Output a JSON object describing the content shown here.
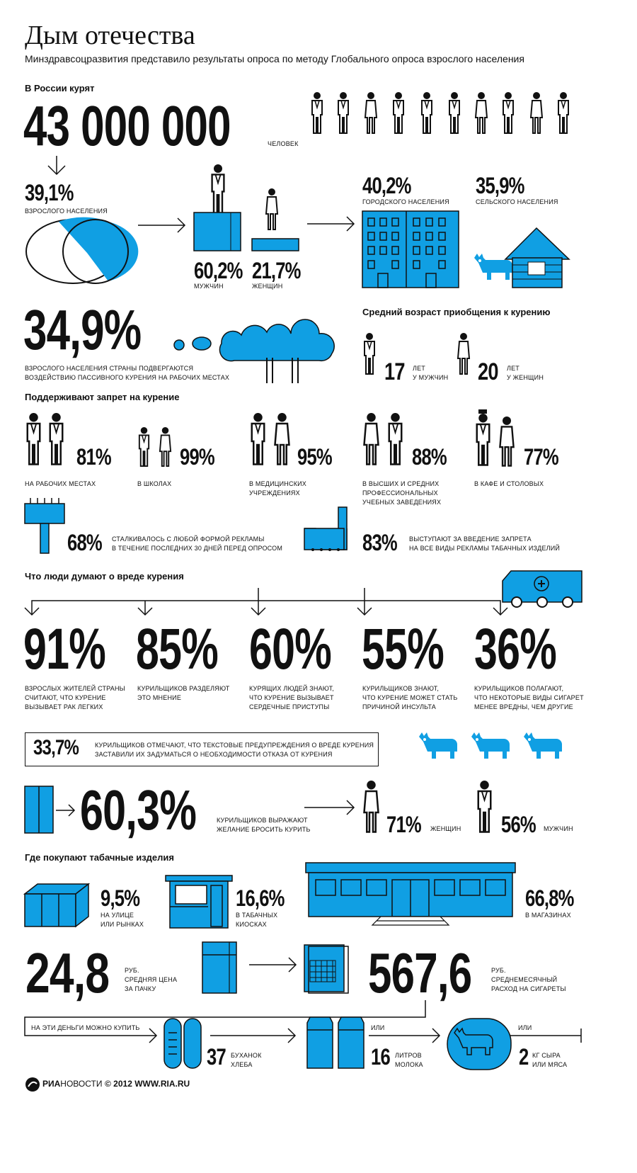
{
  "title": "Дым отечества",
  "subtitle": "Минздравсоцразвития представило результаты опроса по методу Глобального опроса взрослого населения",
  "smokers": {
    "heading": "В России курят",
    "count": "43 000 000",
    "unit": "человек",
    "adult_pct": "39,1%",
    "adult_label": "взрослого населения",
    "men_pct": "60,2%",
    "men_label": "мужчин",
    "women_pct": "21,7%",
    "women_label": "женщин",
    "urban_pct": "40,2%",
    "urban_label": "городского населения",
    "rural_pct": "35,9%",
    "rural_label": "сельского населения"
  },
  "passive": {
    "pct": "34,9%",
    "label_1": "взрослого населения страны подвергаются",
    "label_2": "воздействию пассивного курения на рабочих местах"
  },
  "age": {
    "heading": "Средний возраст приобщения к курению",
    "men_age": "17",
    "men_label_1": "лет",
    "men_label_2": "у мужчин",
    "women_age": "20",
    "women_label_1": "лет",
    "women_label_2": "у женщин"
  },
  "ban": {
    "heading": "Поддерживают запрет на курение",
    "items": [
      {
        "pct": "81%",
        "label_1": "на рабочих местах",
        "label_2": "",
        "label_3": ""
      },
      {
        "pct": "99%",
        "label_1": "в школах",
        "label_2": "",
        "label_3": ""
      },
      {
        "pct": "95%",
        "label_1": "в медицинских",
        "label_2": "учреждениях",
        "label_3": ""
      },
      {
        "pct": "88%",
        "label_1": "в высших и средних",
        "label_2": "профессиональных",
        "label_3": "учебных заведениях"
      },
      {
        "pct": "77%",
        "label_1": "в кафе и столовых",
        "label_2": "",
        "label_3": ""
      }
    ],
    "ads_pct": "68%",
    "ads_label_1": "сталкивалось с любой формой рекламы",
    "ads_label_2": "в течение последних 30 дней перед опросом",
    "adban_pct": "83%",
    "adban_label_1": "выступают за введение запрета",
    "adban_label_2": "на все виды рекламы табачных изделий"
  },
  "harm": {
    "heading": "Что люди думают о вреде курения",
    "items": [
      {
        "pct": "91%",
        "label_1": "взрослых жителей страны",
        "label_2": "считают, что курение",
        "label_3": "вызывает рак легких"
      },
      {
        "pct": "85%",
        "label_1": "курильщиков разделяют",
        "label_2": "это мнение",
        "label_3": ""
      },
      {
        "pct": "60%",
        "label_1": "курящих людей знают,",
        "label_2": "что курение вызывает",
        "label_3": "сердечные приступы"
      },
      {
        "pct": "55%",
        "label_1": "курильщиков знают,",
        "label_2": "что курение может стать",
        "label_3": "причиной инсульта"
      },
      {
        "pct": "36%",
        "label_1": "курильщиков полагают,",
        "label_2": "что некоторые виды сигарет",
        "label_3": "менее вредны, чем другие"
      }
    ],
    "warning_pct": "33,7%",
    "warning_label_1": "курильщиков отмечают, что текстовые предупреждения о вреде курения",
    "warning_label_2": "заставили их задуматься о необходимости отказа от курения"
  },
  "quit": {
    "pct": "60,3%",
    "label_1": "курильщиков выражают",
    "label_2": "желание бросить курить",
    "women_pct": "71%",
    "women_label": "женщин",
    "men_pct": "56%",
    "men_label": "мужчин"
  },
  "purchase": {
    "heading": "Где покупают табачные изделия",
    "street_pct": "9,5%",
    "street_label_1": "на улице",
    "street_label_2": "или рынках",
    "kiosk_pct": "16,6%",
    "kiosk_label_1": "в табачных",
    "kiosk_label_2": "киосках",
    "store_pct": "66,8%",
    "store_label": "в магазинах"
  },
  "price": {
    "pack_price": "24,8",
    "pack_label_1": "руб.",
    "pack_label_2": "средняя цена",
    "pack_label_3": "за пачку",
    "monthly": "567,6",
    "monthly_label_1": "руб.",
    "monthly_label_2": "среднемесячный",
    "monthly_label_3": "расход на сигареты"
  },
  "buy": {
    "lead": "на эти деньги можно купить",
    "or": "или",
    "bread_qty": "37",
    "bread_label_1": "буханок",
    "bread_label_2": "хлеба",
    "milk_qty": "16",
    "milk_label_1": "литров",
    "milk_label_2": "молока",
    "cheese_qty": "2",
    "cheese_label_1": "кг сыра",
    "cheese_label_2": "или мяса"
  },
  "footer": {
    "brand_a": "РИА",
    "brand_b": "НОВОСТИ",
    "copyright": "© 2012 WWW.RIA.RU"
  },
  "colors": {
    "accent": "#109fe3",
    "ink": "#111111"
  }
}
